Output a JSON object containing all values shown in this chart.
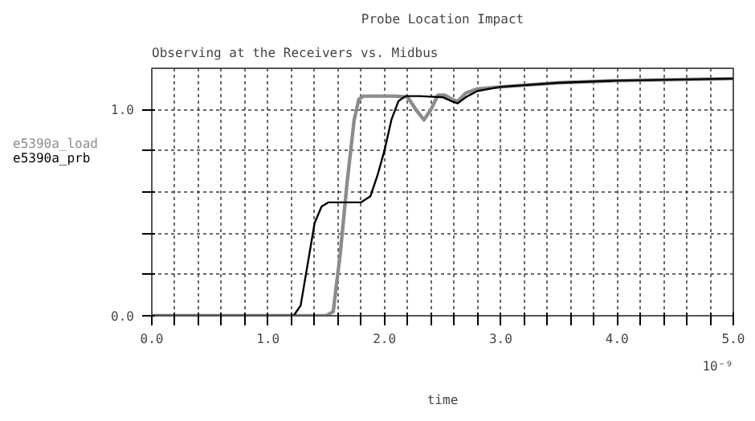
{
  "chart_data": {
    "type": "line",
    "title": "Probe Location Impact",
    "subtitle": "Observing at the Receivers vs. Midbus",
    "xlabel": "time",
    "annotations": [
      "10⁻⁹"
    ],
    "xlim": [
      0,
      5
    ],
    "ylim": [
      0,
      1.2
    ],
    "xticks": [
      {
        "value": 0,
        "label": "0.0"
      },
      {
        "value": 0.2,
        "label": null
      },
      {
        "value": 0.4,
        "label": null
      },
      {
        "value": 0.6,
        "label": null
      },
      {
        "value": 0.8,
        "label": null
      },
      {
        "value": 1,
        "label": "1.0"
      },
      {
        "value": 1.2,
        "label": null
      },
      {
        "value": 1.4,
        "label": null
      },
      {
        "value": 1.6,
        "label": null
      },
      {
        "value": 1.8,
        "label": null
      },
      {
        "value": 2,
        "label": "2.0"
      },
      {
        "value": 2.2,
        "label": null
      },
      {
        "value": 2.4,
        "label": null
      },
      {
        "value": 2.6,
        "label": null
      },
      {
        "value": 2.8,
        "label": null
      },
      {
        "value": 3,
        "label": "3.0"
      },
      {
        "value": 3.2,
        "label": null
      },
      {
        "value": 3.4,
        "label": null
      },
      {
        "value": 3.6,
        "label": null
      },
      {
        "value": 3.8,
        "label": null
      },
      {
        "value": 4,
        "label": "4.0"
      },
      {
        "value": 4.2,
        "label": null
      },
      {
        "value": 4.4,
        "label": null
      },
      {
        "value": 4.6,
        "label": null
      },
      {
        "value": 4.8,
        "label": null
      },
      {
        "value": 5,
        "label": "5.0"
      }
    ],
    "yticks": [
      {
        "value": 0,
        "label": "0.0"
      },
      {
        "value": 0.2,
        "label": null
      },
      {
        "value": 0.4,
        "label": null
      },
      {
        "value": 0.6,
        "label": null
      },
      {
        "value": 0.8,
        "label": null
      },
      {
        "value": 1,
        "label": "1.0"
      }
    ],
    "grid": true,
    "marker": "none",
    "line_style": "solid",
    "series": [
      {
        "name": "e5390a_load",
        "color": "#8c8c8c",
        "x": [
          0,
          1.5,
          1.56,
          1.62,
          1.68,
          1.74,
          1.78,
          1.82,
          1.9,
          2.1,
          2.2,
          2.27,
          2.34,
          2.4,
          2.46,
          2.52,
          2.58,
          2.63,
          2.7,
          2.8,
          3.0,
          3.5,
          4.0,
          4.5,
          5.0
        ],
        "values": [
          0,
          0,
          0.02,
          0.3,
          0.65,
          0.95,
          1.05,
          1.065,
          1.065,
          1.065,
          1.06,
          1.0,
          0.95,
          1.0,
          1.07,
          1.07,
          1.05,
          1.04,
          1.08,
          1.1,
          1.11,
          1.13,
          1.14,
          1.145,
          1.15
        ]
      },
      {
        "name": "e5390a_prb",
        "color": "#000000",
        "x": [
          0,
          1.22,
          1.28,
          1.34,
          1.4,
          1.46,
          1.52,
          1.6,
          1.8,
          1.88,
          1.94,
          2.0,
          2.06,
          2.12,
          2.18,
          2.3,
          2.5,
          2.58,
          2.63,
          2.7,
          2.8,
          3.0,
          3.5,
          4.0,
          4.5,
          5.0
        ],
        "values": [
          0,
          0,
          0.05,
          0.25,
          0.45,
          0.53,
          0.55,
          0.55,
          0.55,
          0.58,
          0.68,
          0.8,
          0.95,
          1.04,
          1.065,
          1.065,
          1.06,
          1.04,
          1.03,
          1.06,
          1.09,
          1.11,
          1.13,
          1.14,
          1.145,
          1.15
        ]
      }
    ]
  }
}
